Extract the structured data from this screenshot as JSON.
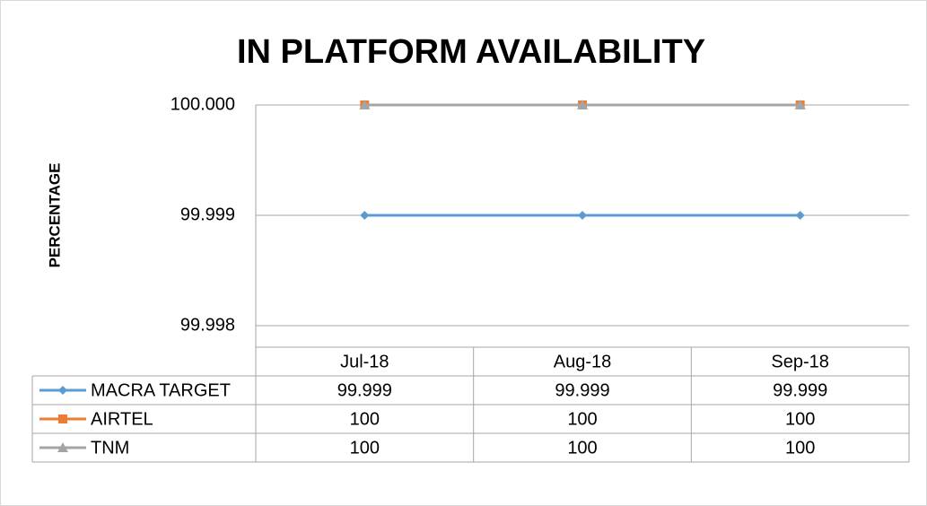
{
  "chart_data": {
    "type": "line",
    "title": "IN PLATFORM AVAILABILITY",
    "ylabel": "PERCENTAGE",
    "categories": [
      "Jul-18",
      "Aug-18",
      "Sep-18"
    ],
    "series": [
      {
        "name": "MACRA TARGET",
        "color": "#5b9bd5",
        "marker": "diamond",
        "values": [
          99.999,
          99.999,
          99.999
        ]
      },
      {
        "name": "AIRTEL",
        "color": "#ed7d31",
        "marker": "square",
        "values": [
          100,
          100,
          100
        ]
      },
      {
        "name": "TNM",
        "color": "#a5a5a5",
        "marker": "triangle",
        "values": [
          100,
          100,
          100
        ]
      }
    ],
    "ylim": [
      99.998,
      100
    ],
    "yticks": [
      99.998,
      99.999,
      {
        "value": 100,
        "label": "100.000"
      }
    ],
    "grid": true,
    "data_table": true
  }
}
